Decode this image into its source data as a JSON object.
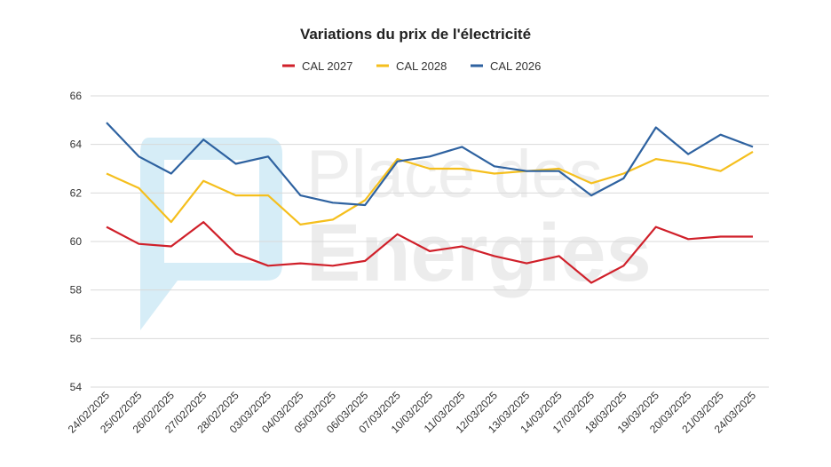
{
  "chart_data": {
    "type": "line",
    "title": "Variations du prix de l'électricité",
    "xlabel": "",
    "ylabel": "",
    "ylim": [
      54,
      66
    ],
    "yticks": [
      54,
      56,
      58,
      60,
      62,
      64,
      66
    ],
    "grid": true,
    "legend_position": "top",
    "categories": [
      "24/02/2025",
      "25/02/2025",
      "26/02/2025",
      "27/02/2025",
      "28/02/2025",
      "03/03/2025",
      "04/03/2025",
      "05/03/2025",
      "06/03/2025",
      "07/03/2025",
      "10/03/2025",
      "11/03/2025",
      "12/03/2025",
      "13/03/2025",
      "14/03/2025",
      "17/03/2025",
      "18/03/2025",
      "19/03/2025",
      "20/03/2025",
      "21/03/2025",
      "24/03/2025"
    ],
    "series": [
      {
        "name": "CAL 2027",
        "color": "#d0202a",
        "values": [
          60.6,
          59.9,
          59.8,
          60.8,
          59.5,
          59.0,
          59.1,
          59.0,
          59.2,
          60.3,
          59.6,
          59.8,
          59.4,
          59.1,
          59.4,
          58.3,
          59.0,
          60.6,
          60.1,
          60.2,
          60.2
        ]
      },
      {
        "name": "CAL 2028",
        "color": "#f5bf1d",
        "values": [
          62.8,
          62.2,
          60.8,
          62.5,
          61.9,
          61.9,
          60.7,
          60.9,
          61.7,
          63.4,
          63.0,
          63.0,
          62.8,
          62.9,
          63.0,
          62.4,
          62.8,
          63.4,
          63.2,
          62.9,
          63.7
        ]
      },
      {
        "name": "CAL 2026",
        "color": "#2e62a0",
        "values": [
          64.9,
          63.5,
          62.8,
          64.2,
          63.2,
          63.5,
          61.9,
          61.6,
          61.5,
          63.3,
          63.5,
          63.9,
          63.1,
          62.9,
          62.9,
          61.9,
          62.6,
          64.7,
          63.6,
          64.4,
          63.9
        ]
      }
    ],
    "legend_order": [
      "CAL 2027",
      "CAL 2028",
      "CAL 2026"
    ]
  },
  "watermark": {
    "line1": "Place des",
    "line2": "Energies",
    "logo_color": "#cfe9f5",
    "text_color": "#ededed"
  },
  "colors": {
    "grid": "#d9d9d9",
    "text": "#333333"
  }
}
